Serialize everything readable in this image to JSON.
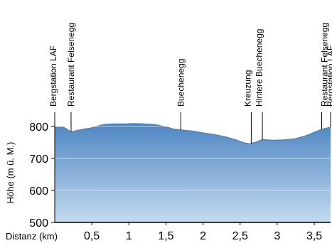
{
  "chart_data": {
    "type": "area",
    "ylabel": "Höhe (m ü. M.)",
    "xlabel": "Distanz (km)",
    "xlim": [
      0,
      3.72
    ],
    "ylim": [
      500,
      840
    ],
    "grid": true,
    "colors": {
      "fill": "#5b8fc7",
      "fill_light": "#a9c7e6",
      "grid": "#ffffff",
      "axis": "#000000"
    },
    "yticks": [
      {
        "value": 500,
        "label": "500"
      },
      {
        "value": 600,
        "label": "600"
      },
      {
        "value": 700,
        "label": "700"
      },
      {
        "value": 800,
        "label": "800"
      }
    ],
    "xticks": [
      {
        "value": 0.5,
        "label": "0,5"
      },
      {
        "value": 1,
        "label": "1"
      },
      {
        "value": 1.5,
        "label": "1,5"
      },
      {
        "value": 2,
        "label": "2"
      },
      {
        "value": 2.5,
        "label": "2,5"
      },
      {
        "value": 3,
        "label": "3"
      },
      {
        "value": 3.5,
        "label": "3,5"
      }
    ],
    "x": [
      0,
      0.12,
      0.22,
      0.35,
      0.5,
      0.65,
      0.8,
      0.95,
      1.05,
      1.2,
      1.35,
      1.5,
      1.6,
      1.72,
      1.85,
      2.0,
      2.15,
      2.3,
      2.45,
      2.55,
      2.62,
      2.7,
      2.8,
      2.95,
      3.1,
      3.25,
      3.4,
      3.5,
      3.6,
      3.72
    ],
    "y": [
      798,
      798,
      783,
      790,
      796,
      806,
      808,
      808,
      809,
      808,
      806,
      799,
      792,
      789,
      786,
      780,
      775,
      768,
      758,
      749,
      746,
      750,
      759,
      757,
      758,
      762,
      772,
      782,
      791,
      798
    ],
    "waypoints": [
      {
        "x": 0.0,
        "label": "Bergstation LAF"
      },
      {
        "x": 0.22,
        "label": "Restaurant Felsenegg"
      },
      {
        "x": 1.7,
        "label": "Buechenegg"
      },
      {
        "x": 2.65,
        "label": "Kreuzung"
      },
      {
        "x": 2.8,
        "label": "Hintere Buechenegg"
      },
      {
        "x": 3.6,
        "label": "Restaurant Felsenegg"
      },
      {
        "x": 3.72,
        "label": "Bergstation LAF"
      }
    ]
  }
}
